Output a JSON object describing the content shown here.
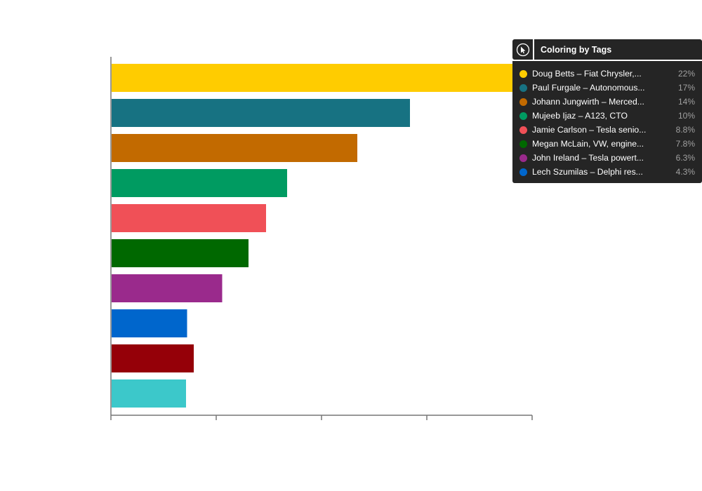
{
  "chart_data": {
    "type": "bar",
    "orientation": "horizontal",
    "values": [
      22,
      17,
      14,
      10,
      8.8,
      7.8,
      6.3,
      4.3,
      null,
      null
    ],
    "series_colors": [
      "#FFCC00",
      "#177282",
      "#C26A00",
      "#009B61",
      "#F05057",
      "#006800",
      "#9A2A8C",
      "#0066CC",
      "#950008",
      "#3CC8CA"
    ],
    "xlim": [
      0,
      24
    ],
    "x_ticks": 5,
    "xlabel": "",
    "ylabel": "",
    "title": "",
    "grid": false,
    "legend_position": "top-right"
  },
  "legend": {
    "title": "Coloring by Tags",
    "toggle_icon": "play-cursor-icon",
    "items": [
      {
        "label": "Doug Betts – Fiat Chrysler,...",
        "pct": "22%",
        "color": "#FFCC00"
      },
      {
        "label": "Paul Furgale – Autonomous...",
        "pct": "17%",
        "color": "#177282"
      },
      {
        "label": "Johann Jungwirth – Merced...",
        "pct": "14%",
        "color": "#C26A00"
      },
      {
        "label": "Mujeeb Ijaz – A123, CTO",
        "pct": "10%",
        "color": "#009B61"
      },
      {
        "label": "Jamie Carlson – Tesla senio...",
        "pct": "8.8%",
        "color": "#F05057"
      },
      {
        "label": "Megan McLain, VW, engine...",
        "pct": "7.8%",
        "color": "#006800"
      },
      {
        "label": "John Ireland – Tesla powert...",
        "pct": "6.3%",
        "color": "#9A2A8C"
      },
      {
        "label": "Lech Szumilas – Delphi res...",
        "pct": "4.3%",
        "color": "#0066CC"
      }
    ]
  }
}
